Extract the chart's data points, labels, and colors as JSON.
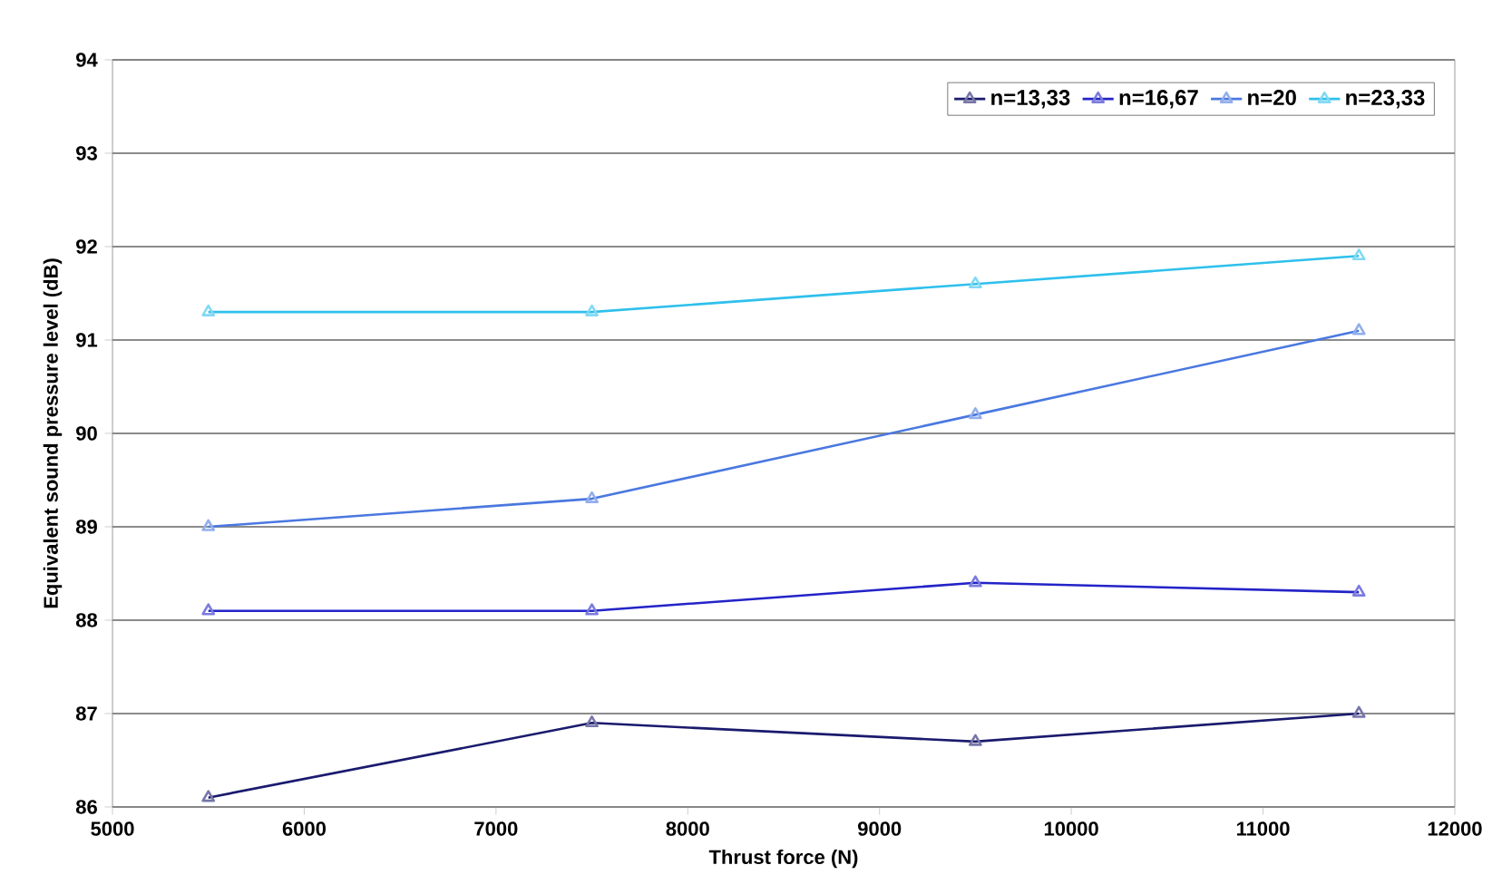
{
  "chart_data": {
    "type": "line",
    "xlabel": "Thrust force (N)",
    "ylabel": "Equivalent sound pressure level (dB)",
    "x": [
      5500,
      7500,
      9500,
      11500
    ],
    "series": [
      {
        "name": "n=13,33",
        "color": "#1a1a6e",
        "values": [
          86.1,
          86.9,
          86.7,
          87.0
        ]
      },
      {
        "name": "n=16,67",
        "color": "#2323c8",
        "values": [
          88.1,
          88.1,
          88.4,
          88.3
        ]
      },
      {
        "name": "n=20",
        "color": "#4a78e0",
        "values": [
          89.0,
          89.3,
          90.2,
          91.1
        ]
      },
      {
        "name": "n=23,33",
        "color": "#2ec0ec",
        "values": [
          91.3,
          91.3,
          91.6,
          91.9
        ]
      }
    ],
    "xlim": [
      5000,
      12000
    ],
    "xticks": [
      5000,
      6000,
      7000,
      8000,
      9000,
      10000,
      11000,
      12000
    ],
    "ylim": [
      86,
      94
    ],
    "yticks": [
      86,
      87,
      88,
      89,
      90,
      91,
      92,
      93,
      94
    ],
    "grid": "y",
    "legend": "top right",
    "marker": "triangle",
    "line_style": "solid"
  }
}
